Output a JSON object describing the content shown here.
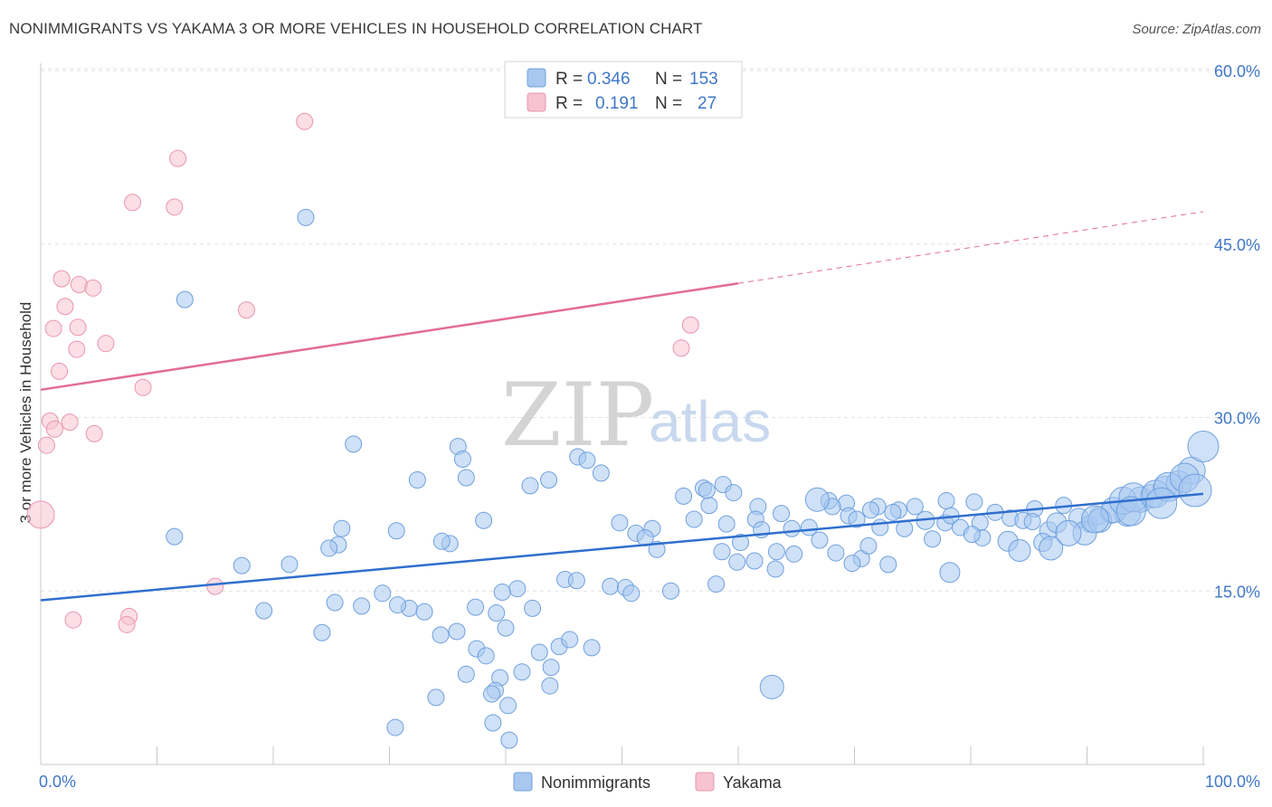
{
  "title": "NONIMMIGRANTS VS YAKAMA 3 OR MORE VEHICLES IN HOUSEHOLD CORRELATION CHART",
  "source": "Source: ZipAtlas.com",
  "watermark": {
    "zip": "ZIP",
    "atlas": "atlas"
  },
  "colors": {
    "blue_fill": "#a8c8f0",
    "blue_stroke": "#6fa0dd",
    "blue_line": "#2f6fce",
    "pink_fill": "#f7c3d1",
    "pink_stroke": "#e995ad",
    "pink_line": "#e36d93",
    "tick_text": "#3f77c9",
    "grid": "#e2e2e2"
  },
  "legend": {
    "rows": [
      {
        "series": "Nonimmigrants",
        "r_label": "R =",
        "r_value": "0.346",
        "n_label": "N =",
        "n_value": "153"
      },
      {
        "series": "Yakama",
        "r_label": "R =",
        "r_value": "0.191",
        "n_label": "N =",
        "n_value": "27"
      }
    ]
  },
  "chart_data": {
    "type": "scatter",
    "title": "NONIMMIGRANTS VS YAKAMA 3 OR MORE VEHICLES IN HOUSEHOLD CORRELATION CHART",
    "xlabel": "",
    "ylabel": "3 or more Vehicles in Household",
    "xlim": [
      0,
      100
    ],
    "ylim": [
      0,
      60
    ],
    "x_tick_labels": [
      "0.0%",
      "100.0%"
    ],
    "y_ticks": [
      15,
      30,
      45,
      60
    ],
    "y_tick_labels": [
      "15.0%",
      "30.0%",
      "45.0%",
      "60.0%"
    ],
    "legend_bottom": [
      "Nonimmigrants",
      "Yakama"
    ],
    "series": [
      {
        "name": "Nonimmigrants",
        "r": 0.346,
        "n": 153,
        "trend": {
          "x": [
            0,
            100
          ],
          "y": [
            14.2,
            23.4
          ]
        },
        "points": [
          [
            22.8,
            47.3
          ],
          [
            12.4,
            40.2
          ],
          [
            11.5,
            19.7
          ],
          [
            26.9,
            27.7
          ],
          [
            35.9,
            27.5
          ],
          [
            36.3,
            26.4
          ],
          [
            32.4,
            24.6
          ],
          [
            36.6,
            24.8
          ],
          [
            43.7,
            24.6
          ],
          [
            46.2,
            26.6
          ],
          [
            47.0,
            26.3
          ],
          [
            48.2,
            25.2
          ],
          [
            42.1,
            24.1
          ],
          [
            25.9,
            20.4
          ],
          [
            25.6,
            19.0
          ],
          [
            24.8,
            18.7
          ],
          [
            21.4,
            17.3
          ],
          [
            17.3,
            17.2
          ],
          [
            30.6,
            20.2
          ],
          [
            35.2,
            19.1
          ],
          [
            34.5,
            19.3
          ],
          [
            38.1,
            21.1
          ],
          [
            41.0,
            15.2
          ],
          [
            39.7,
            14.9
          ],
          [
            31.7,
            13.5
          ],
          [
            37.4,
            13.6
          ],
          [
            39.2,
            13.1
          ],
          [
            42.3,
            13.5
          ],
          [
            45.1,
            16.0
          ],
          [
            46.1,
            15.9
          ],
          [
            49.0,
            15.4
          ],
          [
            50.3,
            15.3
          ],
          [
            50.8,
            14.8
          ],
          [
            54.2,
            15.0
          ],
          [
            58.1,
            15.6
          ],
          [
            25.3,
            14.0
          ],
          [
            27.6,
            13.7
          ],
          [
            29.4,
            14.8
          ],
          [
            30.7,
            13.8
          ],
          [
            33.0,
            13.2
          ],
          [
            19.2,
            13.3
          ],
          [
            24.2,
            11.4
          ],
          [
            34.4,
            11.2
          ],
          [
            35.8,
            11.5
          ],
          [
            37.5,
            10.0
          ],
          [
            38.3,
            9.4
          ],
          [
            42.9,
            9.7
          ],
          [
            43.9,
            8.4
          ],
          [
            40.0,
            11.8
          ],
          [
            44.6,
            10.2
          ],
          [
            45.5,
            10.8
          ],
          [
            47.4,
            10.1
          ],
          [
            36.6,
            7.8
          ],
          [
            39.5,
            7.5
          ],
          [
            39.1,
            6.4
          ],
          [
            41.4,
            8.0
          ],
          [
            43.8,
            6.8
          ],
          [
            38.8,
            6.1
          ],
          [
            34.0,
            5.8
          ],
          [
            40.2,
            5.1
          ],
          [
            38.9,
            3.6
          ],
          [
            40.3,
            2.1
          ],
          [
            30.5,
            3.2
          ],
          [
            62.9,
            6.7
          ],
          [
            49.8,
            20.9
          ],
          [
            51.2,
            20.0
          ],
          [
            52.6,
            20.4
          ],
          [
            52.0,
            19.6
          ],
          [
            53.0,
            18.6
          ],
          [
            56.2,
            21.2
          ],
          [
            57.5,
            22.4
          ],
          [
            55.3,
            23.2
          ],
          [
            57.0,
            23.9
          ],
          [
            57.3,
            23.7
          ],
          [
            58.7,
            24.2
          ],
          [
            59.6,
            23.5
          ],
          [
            61.7,
            22.3
          ],
          [
            63.7,
            21.7
          ],
          [
            61.5,
            21.2
          ],
          [
            59.0,
            20.8
          ],
          [
            62.0,
            20.3
          ],
          [
            64.6,
            20.4
          ],
          [
            66.1,
            20.5
          ],
          [
            67.8,
            22.8
          ],
          [
            69.3,
            22.6
          ],
          [
            72.0,
            22.3
          ],
          [
            73.8,
            22.0
          ],
          [
            75.2,
            22.3
          ],
          [
            77.9,
            22.8
          ],
          [
            80.3,
            22.7
          ],
          [
            68.1,
            22.3
          ],
          [
            69.5,
            21.5
          ],
          [
            70.2,
            21.2
          ],
          [
            71.4,
            22.0
          ],
          [
            72.2,
            20.5
          ],
          [
            73.3,
            21.8
          ],
          [
            76.1,
            21.1
          ],
          [
            77.8,
            20.9
          ],
          [
            78.3,
            21.5
          ],
          [
            80.8,
            20.9
          ],
          [
            82.1,
            21.8
          ],
          [
            83.4,
            21.3
          ],
          [
            84.5,
            21.1
          ],
          [
            85.5,
            22.1
          ],
          [
            86.7,
            20.2
          ],
          [
            88.0,
            22.4
          ],
          [
            89.3,
            21.3
          ],
          [
            90.2,
            20.8
          ],
          [
            91.0,
            21.5
          ],
          [
            92.1,
            21.8
          ],
          [
            93.5,
            21.7
          ],
          [
            94.6,
            22.9
          ],
          [
            95.6,
            23.2
          ],
          [
            96.7,
            23.9
          ],
          [
            97.9,
            24.3
          ],
          [
            99.0,
            25.4
          ],
          [
            100.0,
            27.5
          ],
          [
            58.6,
            18.4
          ],
          [
            60.2,
            19.2
          ],
          [
            61.4,
            17.6
          ],
          [
            63.3,
            18.4
          ],
          [
            64.8,
            18.2
          ],
          [
            67.0,
            19.4
          ],
          [
            68.4,
            18.3
          ],
          [
            70.6,
            17.8
          ],
          [
            71.2,
            18.9
          ],
          [
            74.3,
            20.4
          ],
          [
            76.7,
            19.5
          ],
          [
            79.1,
            20.5
          ],
          [
            81.0,
            19.6
          ],
          [
            83.2,
            19.3
          ],
          [
            85.3,
            21.0
          ],
          [
            86.2,
            19.2
          ],
          [
            87.4,
            20.9
          ],
          [
            89.8,
            20.0
          ],
          [
            91.1,
            21.1
          ],
          [
            92.3,
            22.0
          ],
          [
            93.1,
            22.8
          ],
          [
            94.0,
            23.1
          ],
          [
            95.9,
            23.4
          ],
          [
            97.0,
            24.0
          ],
          [
            98.4,
            24.8
          ],
          [
            59.9,
            17.5
          ],
          [
            63.2,
            16.9
          ],
          [
            69.8,
            17.4
          ],
          [
            72.9,
            17.3
          ],
          [
            78.2,
            16.6
          ],
          [
            80.1,
            19.9
          ],
          [
            84.2,
            18.5
          ],
          [
            86.9,
            18.7
          ],
          [
            88.4,
            20.0
          ],
          [
            90.7,
            21.2
          ],
          [
            93.8,
            21.9
          ],
          [
            96.4,
            22.6
          ],
          [
            99.3,
            23.7
          ],
          [
            66.8,
            22.9
          ]
        ],
        "radius": [
          9,
          9,
          9,
          9,
          9,
          9,
          9,
          9,
          9,
          9,
          9,
          9,
          9,
          9,
          9,
          9,
          9,
          9,
          9,
          9,
          9,
          9,
          9,
          9,
          9,
          9,
          9,
          9,
          9,
          9,
          9,
          9,
          9,
          9,
          9,
          9,
          9,
          9,
          9,
          9,
          9,
          9,
          9,
          9,
          9,
          9,
          9,
          9,
          9,
          9,
          9,
          9,
          9,
          9,
          9,
          9,
          9,
          9,
          9,
          9,
          9,
          9,
          9,
          13,
          9,
          9,
          9,
          9,
          9,
          9,
          9,
          9,
          9,
          9,
          9,
          9,
          9,
          9,
          9,
          9,
          9,
          9,
          9,
          9,
          9,
          9,
          9,
          9,
          9,
          9,
          9,
          9,
          9,
          9,
          9,
          9,
          10,
          9,
          9,
          9,
          9,
          9,
          9,
          9,
          10,
          9,
          11,
          9,
          10,
          12,
          14,
          14,
          13,
          13,
          14,
          15,
          17,
          9,
          9,
          9,
          9,
          9,
          9,
          9,
          9,
          9,
          9,
          9,
          9,
          9,
          11,
          9,
          10,
          11,
          13,
          13,
          14,
          15,
          16,
          15,
          16,
          16,
          9,
          9,
          9,
          9,
          11,
          9,
          12,
          13,
          14,
          15,
          16,
          17,
          18,
          13,
          9
        ]
      },
      {
        "name": "Yakama",
        "r": 0.191,
        "n": 27,
        "trend": {
          "x": [
            0,
            60
          ],
          "y": [
            32.4,
            41.6
          ],
          "dashed_to": [
            100,
            47.8
          ]
        },
        "points": [
          [
            22.7,
            55.6
          ],
          [
            11.8,
            52.4
          ],
          [
            7.9,
            48.6
          ],
          [
            11.5,
            48.2
          ],
          [
            1.8,
            42.0
          ],
          [
            3.3,
            41.5
          ],
          [
            4.5,
            41.2
          ],
          [
            2.1,
            39.6
          ],
          [
            17.7,
            39.3
          ],
          [
            1.1,
            37.7
          ],
          [
            3.2,
            37.8
          ],
          [
            5.6,
            36.4
          ],
          [
            3.1,
            35.9
          ],
          [
            1.6,
            34.0
          ],
          [
            8.8,
            32.6
          ],
          [
            0.8,
            29.7
          ],
          [
            2.5,
            29.6
          ],
          [
            1.2,
            29.0
          ],
          [
            4.6,
            28.6
          ],
          [
            0.5,
            27.6
          ],
          [
            0.0,
            21.6
          ],
          [
            15.0,
            15.4
          ],
          [
            2.8,
            12.5
          ],
          [
            7.6,
            12.8
          ],
          [
            7.4,
            12.1
          ],
          [
            55.9,
            38.0
          ],
          [
            55.1,
            36.0
          ]
        ],
        "radius": [
          9,
          9,
          9,
          9,
          9,
          9,
          9,
          9,
          9,
          9,
          9,
          9,
          9,
          9,
          9,
          9,
          9,
          9,
          9,
          9,
          15,
          9,
          9,
          9,
          9,
          9,
          9
        ]
      }
    ]
  }
}
